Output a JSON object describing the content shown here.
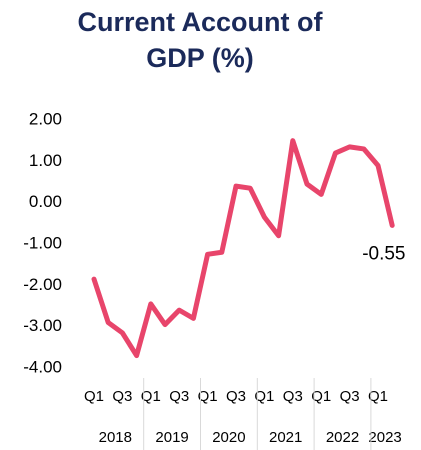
{
  "chart_data": {
    "type": "line",
    "title": "Current Account of GDP (%)",
    "categories": [
      "Q1",
      null,
      "Q3",
      null,
      "Q1",
      null,
      "Q3",
      null,
      "Q1",
      null,
      "Q3",
      null,
      "Q1",
      null,
      "Q3",
      null,
      "Q1",
      null,
      "Q3",
      null,
      "Q1",
      null
    ],
    "groups": [
      "2018",
      "2019",
      "2020",
      "2021",
      "2022",
      "2023"
    ],
    "series": [
      {
        "name": "Current Account of GDP (%)",
        "color": "#e8456b",
        "values": [
          -1.85,
          -2.9,
          -3.15,
          -3.7,
          -2.45,
          -2.95,
          -2.6,
          -2.8,
          -1.25,
          -1.2,
          0.4,
          0.35,
          -0.35,
          -0.8,
          1.5,
          0.45,
          0.2,
          1.2,
          1.35,
          1.3,
          0.9,
          -0.55
        ],
        "value_labels": [
          null,
          null,
          null,
          null,
          null,
          null,
          null,
          null,
          null,
          null,
          null,
          null,
          null,
          null,
          null,
          null,
          null,
          null,
          null,
          null,
          null,
          "-0.55"
        ]
      }
    ],
    "ylim": [
      -4,
      2
    ],
    "yticks": [
      {
        "value": -4,
        "label": "-4.00"
      },
      {
        "value": -3,
        "label": "-3.00"
      },
      {
        "value": -2,
        "label": "-2.00"
      },
      {
        "value": -1,
        "label": "-1.00"
      },
      {
        "value": 0,
        "label": "0.00"
      },
      {
        "value": 1,
        "label": "1.00"
      },
      {
        "value": 2,
        "label": "2.00"
      }
    ]
  }
}
